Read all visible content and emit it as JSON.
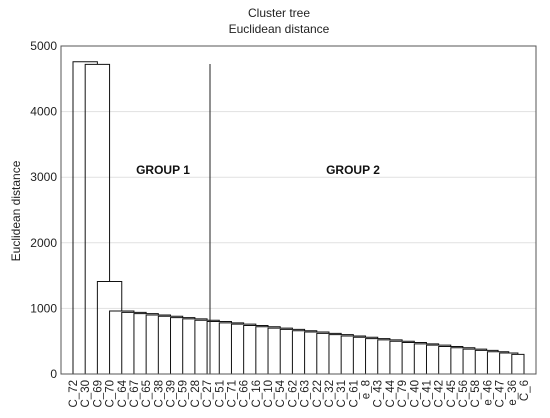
{
  "chart_data": {
    "type": "dendrogram",
    "title": "Cluster tree",
    "subtitle": "Euclidean distance",
    "ylabel": "Euclidean distance",
    "xlabel": "",
    "ylim": [
      0,
      5000
    ],
    "yticks": [
      0,
      1000,
      2000,
      3000,
      4000,
      5000
    ],
    "grid": true,
    "leaves": [
      "C_72",
      "C_30",
      "C_69",
      "C_70",
      "C_64",
      "C_67",
      "C_65",
      "C_38",
      "C_39",
      "C_59",
      "C_28",
      "C_27",
      "C_51",
      "C_71",
      "C_66",
      "C_16",
      "C_10",
      "C_54",
      "C_62",
      "C_63",
      "C_22",
      "C_32",
      "C_31",
      "C_61",
      "e_8",
      "C_43",
      "C_44",
      "C_79",
      "C_40",
      "C_41",
      "C_42",
      "C_45",
      "C_56",
      "C_58",
      "e_46",
      "C_47",
      "e_36",
      "C_6"
    ],
    "merges": [
      {
        "a": 1,
        "b": 2,
        "height": 4760
      },
      {
        "a": 0,
        "b": -1,
        "height": 4720
      },
      {
        "a": 3,
        "b": 4,
        "height": 1410
      },
      {
        "a": 5,
        "b": 6,
        "height": 810
      },
      {
        "a": 7,
        "b": 8,
        "height": 840
      },
      {
        "a": 9,
        "b": 10,
        "height": 760
      },
      {
        "a": 11,
        "b": 12,
        "height": 820
      },
      {
        "a": 13,
        "b": 14,
        "height": 620
      },
      {
        "a": 15,
        "b": 16,
        "height": 380
      },
      {
        "a": 17,
        "b": 18,
        "height": 340
      },
      {
        "a": 19,
        "b": 20,
        "height": 380
      },
      {
        "a": 21,
        "b": 22,
        "height": 410
      },
      {
        "a": 23,
        "b": 24,
        "height": 380
      },
      {
        "a": 25,
        "b": 26,
        "height": 310
      },
      {
        "a": 27,
        "b": 28,
        "height": 420
      },
      {
        "a": 29,
        "b": 30,
        "height": 360
      },
      {
        "a": 31,
        "b": 32,
        "height": 350
      },
      {
        "a": 33,
        "b": 34,
        "height": 250
      },
      {
        "a": 35,
        "b": 36,
        "height": 300
      },
      {
        "a": 37,
        "b": 38,
        "height": 210
      }
    ],
    "groups": [
      {
        "label": "GROUP  1"
      },
      {
        "label": "GROUP  2"
      }
    ]
  }
}
